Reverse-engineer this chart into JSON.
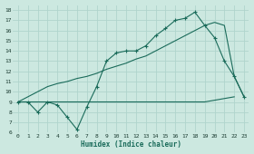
{
  "xlabel": "Humidex (Indice chaleur)",
  "xlim": [
    -0.5,
    23.5
  ],
  "ylim": [
    6,
    18.5
  ],
  "xticks": [
    0,
    1,
    2,
    3,
    4,
    5,
    6,
    7,
    8,
    9,
    10,
    11,
    12,
    13,
    14,
    15,
    16,
    17,
    18,
    19,
    20,
    21,
    22,
    23
  ],
  "yticks": [
    6,
    7,
    8,
    9,
    10,
    11,
    12,
    13,
    14,
    15,
    16,
    17,
    18
  ],
  "bg_color": "#cce8e0",
  "grid_color": "#b0d4cc",
  "line_color": "#1a6b5a",
  "line1_x": [
    0,
    1,
    2,
    3,
    4,
    5,
    6,
    7,
    8,
    9,
    10,
    11,
    12,
    13,
    14,
    15,
    16,
    17,
    18,
    19,
    20,
    21,
    22,
    23
  ],
  "line1_y": [
    9,
    9,
    8,
    9,
    8.7,
    7.5,
    6.3,
    8.5,
    10.5,
    13.0,
    13.8,
    14.0,
    14.0,
    14.5,
    15.5,
    16.2,
    17.0,
    17.2,
    17.8,
    16.5,
    15.3,
    13.0,
    11.5,
    9.5
  ],
  "line2_x": [
    0,
    10,
    19,
    22
  ],
  "line2_y": [
    9,
    9,
    9,
    9.5
  ],
  "line3_x": [
    0,
    1,
    2,
    3,
    4,
    5,
    6,
    7,
    8,
    9,
    10,
    11,
    12,
    13,
    14,
    15,
    16,
    17,
    18,
    19,
    20,
    21,
    22,
    23
  ],
  "line3_y": [
    9,
    9.5,
    10.0,
    10.5,
    10.8,
    11.0,
    11.3,
    11.5,
    11.8,
    12.2,
    12.5,
    12.8,
    13.2,
    13.5,
    14.0,
    14.5,
    15.0,
    15.5,
    16.0,
    16.5,
    16.8,
    16.5,
    11.5,
    9.5
  ]
}
